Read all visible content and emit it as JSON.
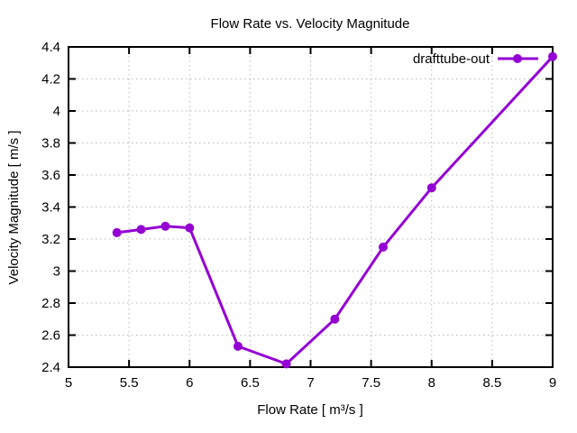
{
  "chart_data": {
    "type": "line",
    "title": "Flow Rate vs. Velocity Magnitude",
    "xlabel": "Flow Rate [ m³/s ]",
    "ylabel": "Velocity Magnitude [ m/s ]",
    "xlim": [
      5,
      9
    ],
    "ylim": [
      2.4,
      4.4
    ],
    "xticks": [
      5,
      5.5,
      6,
      6.5,
      7,
      7.5,
      8,
      8.5,
      9
    ],
    "xtick_labels": [
      "5",
      "5.5",
      "6",
      "6.5",
      "7",
      "7.5",
      "8",
      "8.5",
      "9"
    ],
    "yticks": [
      2.4,
      2.6,
      2.8,
      3.0,
      3.2,
      3.4,
      3.6,
      3.8,
      4.0,
      4.2,
      4.4
    ],
    "ytick_labels": [
      "2.4",
      "2.6",
      "2.8",
      "3",
      "3.2",
      "3.4",
      "3.6",
      "3.8",
      "4",
      "4.2",
      "4.4"
    ],
    "grid": true,
    "legend_position": "top-right-inside",
    "series": [
      {
        "name": "drafttube-out",
        "color": "#9400d3",
        "marker": "filled-circle",
        "points": [
          [
            5.4,
            3.24
          ],
          [
            5.6,
            3.26
          ],
          [
            5.8,
            3.28
          ],
          [
            6.0,
            3.27
          ],
          [
            6.4,
            2.53
          ],
          [
            6.8,
            2.42
          ],
          [
            7.2,
            2.7
          ],
          [
            7.6,
            3.15
          ],
          [
            8.0,
            3.52
          ],
          [
            9.0,
            4.34
          ]
        ]
      }
    ],
    "colors": {
      "line": "#9400d3",
      "grid": "#b8b8b8",
      "border": "#000000",
      "background": "#ffffff",
      "text": "#000000"
    }
  }
}
